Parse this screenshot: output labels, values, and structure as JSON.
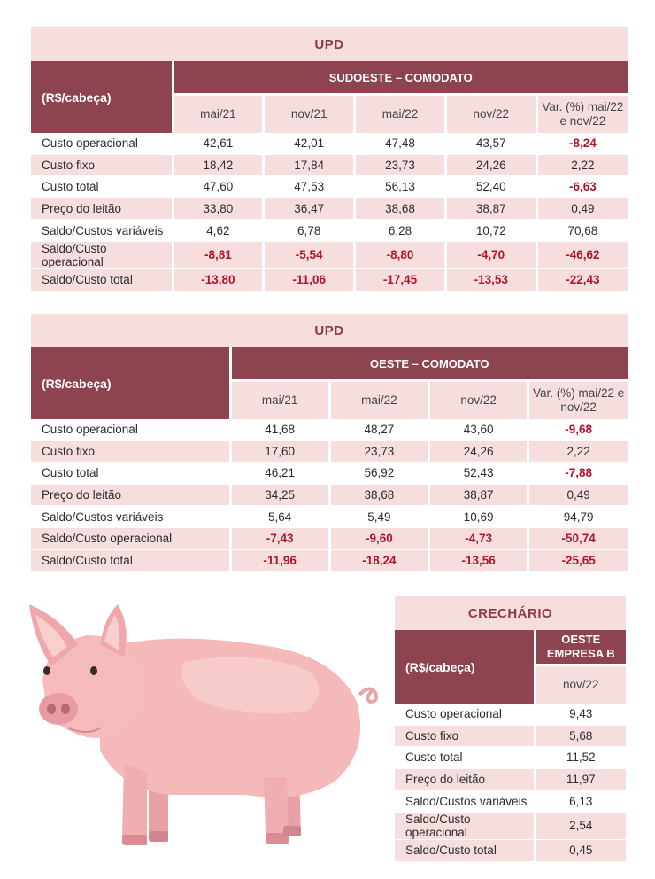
{
  "table1": {
    "title": "UPD",
    "row_header": "(R$/cabeça)",
    "group": "SUDOESTE – COMODATO",
    "columns": [
      "mai/21",
      "nov/21",
      "mai/22",
      "nov/22",
      "Var. (%) mai/22 e nov/22"
    ],
    "rows": [
      {
        "label": "Custo operacional",
        "values": [
          "42,61",
          "42,01",
          "47,48",
          "43,57",
          "-8,24"
        ]
      },
      {
        "label": "Custo fixo",
        "values": [
          "18,42",
          "17,84",
          "23,73",
          "24,26",
          "2,22"
        ]
      },
      {
        "label": "Custo total",
        "values": [
          "47,60",
          "47,53",
          "56,13",
          "52,40",
          "-6,63"
        ]
      },
      {
        "label": "Preço do leitão",
        "values": [
          "33,80",
          "36,47",
          "38,68",
          "38,87",
          "0,49"
        ]
      },
      {
        "label": "Saldo/Custos variáveis",
        "values": [
          "4,62",
          "6,78",
          "6,28",
          "10,72",
          "70,68"
        ]
      },
      {
        "label": "Saldo/Custo operacional",
        "values": [
          "-8,81",
          "-5,54",
          "-8,80",
          "-4,70",
          "-46,62"
        ]
      },
      {
        "label": "Saldo/Custo total",
        "values": [
          "-13,80",
          "-11,06",
          "-17,45",
          "-13,53",
          "-22,43"
        ]
      }
    ]
  },
  "table2": {
    "title": "UPD",
    "row_header": "(R$/cabeça)",
    "group": "OESTE – COMODATO",
    "columns": [
      "mai/21",
      "mai/22",
      "nov/22",
      "Var. (%) mai/22 e nov/22"
    ],
    "rows": [
      {
        "label": "Custo operacional",
        "values": [
          "41,68",
          "48,27",
          "43,60",
          "-9,68"
        ]
      },
      {
        "label": "Custo fixo",
        "values": [
          "17,60",
          "23,73",
          "24,26",
          "2,22"
        ]
      },
      {
        "label": "Custo total",
        "values": [
          "46,21",
          "56,92",
          "52,43",
          "-7,88"
        ]
      },
      {
        "label": "Preço do leitão",
        "values": [
          "34,25",
          "38,68",
          "38,87",
          "0,49"
        ]
      },
      {
        "label": "Saldo/Custos variáveis",
        "values": [
          "5,64",
          "5,49",
          "10,69",
          "94,79"
        ]
      },
      {
        "label": "Saldo/Custo operacional",
        "values": [
          "-7,43",
          "-9,60",
          "-4,73",
          "-50,74"
        ]
      },
      {
        "label": "Saldo/Custo total",
        "values": [
          "-11,96",
          "-18,24",
          "-13,56",
          "-25,65"
        ]
      }
    ]
  },
  "table3": {
    "title": "CRECHÁRIO",
    "row_header": "(R$/cabeça)",
    "group": "OESTE EMPRESA B",
    "columns": [
      "nov/22"
    ],
    "rows": [
      {
        "label": "Custo operacional",
        "values": [
          "9,43"
        ]
      },
      {
        "label": "Custo fixo",
        "values": [
          "5,68"
        ]
      },
      {
        "label": "Custo total",
        "values": [
          "11,52"
        ]
      },
      {
        "label": "Preço do leitão",
        "values": [
          "11,97"
        ]
      },
      {
        "label": "Saldo/Custos variáveis",
        "values": [
          "6,13"
        ]
      },
      {
        "label": "Saldo/Custo operacional",
        "values": [
          "2,54"
        ]
      },
      {
        "label": "Saldo/Custo total",
        "values": [
          "0,45"
        ]
      }
    ]
  },
  "colors": {
    "header_dark": "#8e4450",
    "header_light": "#f6dede",
    "title_text": "#8e3a45",
    "negative_emphasis": "#b3132a"
  },
  "illustration": "pig-illustration"
}
